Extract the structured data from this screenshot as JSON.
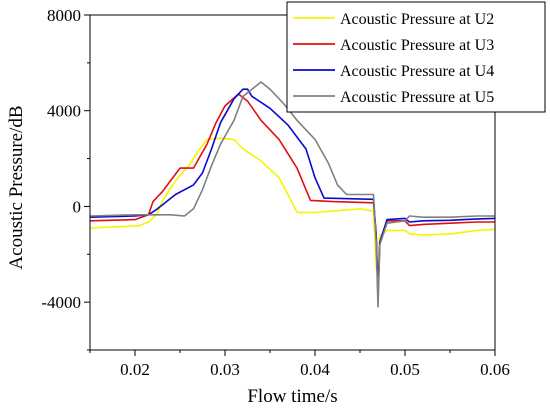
{
  "chart_data": {
    "type": "line",
    "title": "",
    "xlabel": "Flow time/s",
    "ylabel": "Acoustic Pressure/dB",
    "xlim": [
      0.015,
      0.06
    ],
    "ylim": [
      -6000,
      8000
    ],
    "xticks": [
      0.02,
      0.03,
      0.04,
      0.05,
      0.06
    ],
    "xtick_labels": [
      "0.02",
      "0.03",
      "0.04",
      "0.05",
      "0.06"
    ],
    "yticks": [
      -4000,
      0,
      4000,
      8000
    ],
    "ytick_labels": [
      "-4000",
      "0",
      "4000",
      "8000"
    ],
    "grid": false,
    "legend_position": "top-right",
    "series": [
      {
        "name": "Acoustic Pressure at U2",
        "color": "#f5f500",
        "points": [
          [
            0.015,
            -900
          ],
          [
            0.018,
            -850
          ],
          [
            0.0205,
            -800
          ],
          [
            0.0215,
            -650
          ],
          [
            0.0225,
            -300
          ],
          [
            0.023,
            200
          ],
          [
            0.024,
            800
          ],
          [
            0.025,
            1300
          ],
          [
            0.026,
            1700
          ],
          [
            0.027,
            2300
          ],
          [
            0.028,
            2800
          ],
          [
            0.0295,
            2850
          ],
          [
            0.031,
            2800
          ],
          [
            0.032,
            2400
          ],
          [
            0.034,
            1900
          ],
          [
            0.036,
            1200
          ],
          [
            0.037,
            500
          ],
          [
            0.038,
            -250
          ],
          [
            0.04,
            -250
          ],
          [
            0.045,
            -100
          ],
          [
            0.0465,
            -200
          ],
          [
            0.0468,
            -2500
          ],
          [
            0.047,
            -3000
          ],
          [
            0.0472,
            -1200
          ],
          [
            0.048,
            -1000
          ],
          [
            0.05,
            -1000
          ],
          [
            0.0505,
            -1150
          ],
          [
            0.052,
            -1200
          ],
          [
            0.055,
            -1150
          ],
          [
            0.058,
            -1000
          ],
          [
            0.06,
            -950
          ]
        ]
      },
      {
        "name": "Acoustic Pressure at U3",
        "color": "#e01010",
        "points": [
          [
            0.015,
            -600
          ],
          [
            0.02,
            -550
          ],
          [
            0.0215,
            -350
          ],
          [
            0.022,
            200
          ],
          [
            0.023,
            600
          ],
          [
            0.024,
            1100
          ],
          [
            0.025,
            1600
          ],
          [
            0.0265,
            1600
          ],
          [
            0.028,
            2600
          ],
          [
            0.029,
            3500
          ],
          [
            0.03,
            4200
          ],
          [
            0.0315,
            4700
          ],
          [
            0.0325,
            4400
          ],
          [
            0.034,
            3600
          ],
          [
            0.036,
            2800
          ],
          [
            0.038,
            1600
          ],
          [
            0.039,
            700
          ],
          [
            0.0395,
            250
          ],
          [
            0.042,
            200
          ],
          [
            0.0465,
            150
          ],
          [
            0.0468,
            -1200
          ],
          [
            0.047,
            -3800
          ],
          [
            0.0472,
            -1500
          ],
          [
            0.048,
            -600
          ],
          [
            0.05,
            -600
          ],
          [
            0.0505,
            -800
          ],
          [
            0.052,
            -750
          ],
          [
            0.055,
            -700
          ],
          [
            0.058,
            -650
          ],
          [
            0.06,
            -650
          ]
        ]
      },
      {
        "name": "Acoustic Pressure at U4",
        "color": "#0a0ad0",
        "points": [
          [
            0.015,
            -450
          ],
          [
            0.02,
            -400
          ],
          [
            0.0215,
            -350
          ],
          [
            0.0225,
            -100
          ],
          [
            0.0235,
            200
          ],
          [
            0.0245,
            500
          ],
          [
            0.0265,
            900
          ],
          [
            0.0275,
            1400
          ],
          [
            0.0285,
            2400
          ],
          [
            0.0295,
            3500
          ],
          [
            0.031,
            4500
          ],
          [
            0.032,
            4900
          ],
          [
            0.0325,
            4900
          ],
          [
            0.033,
            4600
          ],
          [
            0.035,
            4100
          ],
          [
            0.037,
            3400
          ],
          [
            0.039,
            2400
          ],
          [
            0.04,
            1200
          ],
          [
            0.041,
            350
          ],
          [
            0.0465,
            300
          ],
          [
            0.0468,
            -1200
          ],
          [
            0.047,
            -3700
          ],
          [
            0.0472,
            -1500
          ],
          [
            0.048,
            -550
          ],
          [
            0.05,
            -500
          ],
          [
            0.0505,
            -650
          ],
          [
            0.052,
            -600
          ],
          [
            0.055,
            -580
          ],
          [
            0.058,
            -520
          ],
          [
            0.06,
            -500
          ]
        ]
      },
      {
        "name": "Acoustic Pressure at U5",
        "color": "#808080",
        "points": [
          [
            0.015,
            -400
          ],
          [
            0.02,
            -350
          ],
          [
            0.024,
            -350
          ],
          [
            0.0255,
            -400
          ],
          [
            0.0265,
            -100
          ],
          [
            0.0275,
            700
          ],
          [
            0.0285,
            1700
          ],
          [
            0.0295,
            2600
          ],
          [
            0.031,
            3600
          ],
          [
            0.032,
            4600
          ],
          [
            0.033,
            4900
          ],
          [
            0.034,
            5200
          ],
          [
            0.035,
            4900
          ],
          [
            0.0365,
            4300
          ],
          [
            0.038,
            3600
          ],
          [
            0.04,
            2800
          ],
          [
            0.0415,
            1800
          ],
          [
            0.0425,
            900
          ],
          [
            0.0435,
            500
          ],
          [
            0.0465,
            500
          ],
          [
            0.0468,
            -1500
          ],
          [
            0.047,
            -4200
          ],
          [
            0.0472,
            -1600
          ],
          [
            0.048,
            -700
          ],
          [
            0.05,
            -600
          ],
          [
            0.0505,
            -400
          ],
          [
            0.052,
            -450
          ],
          [
            0.055,
            -450
          ],
          [
            0.058,
            -400
          ],
          [
            0.06,
            -400
          ]
        ]
      }
    ]
  }
}
